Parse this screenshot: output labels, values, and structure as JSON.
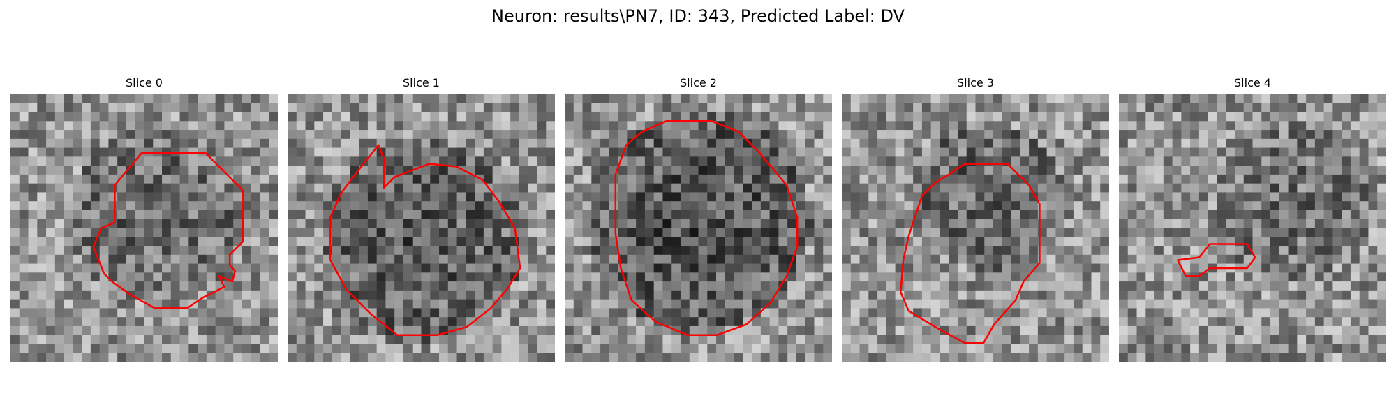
{
  "suptitle": "Neuron: results\\PN7, ID: 343, Predicted Label: DV",
  "contour_color": "#ff0000",
  "panels": [
    {
      "title": "Slice 0",
      "seed": 11,
      "dark_center": [
        0.55,
        0.45
      ],
      "dark_radius": 0.33,
      "dark_strength": 0.18,
      "contour": [
        [
          0.49,
          0.22
        ],
        [
          0.73,
          0.22
        ],
        [
          0.87,
          0.36
        ],
        [
          0.87,
          0.55
        ],
        [
          0.82,
          0.6
        ],
        [
          0.82,
          0.64
        ],
        [
          0.84,
          0.66
        ],
        [
          0.83,
          0.7
        ],
        [
          0.78,
          0.68
        ],
        [
          0.8,
          0.72
        ],
        [
          0.72,
          0.76
        ],
        [
          0.66,
          0.8
        ],
        [
          0.54,
          0.8
        ],
        [
          0.45,
          0.75
        ],
        [
          0.38,
          0.7
        ],
        [
          0.35,
          0.67
        ],
        [
          0.31,
          0.57
        ],
        [
          0.34,
          0.5
        ],
        [
          0.39,
          0.48
        ],
        [
          0.39,
          0.34
        ]
      ]
    },
    {
      "title": "Slice 1",
      "seed": 23,
      "dark_center": [
        0.5,
        0.55
      ],
      "dark_radius": 0.38,
      "dark_strength": 0.24,
      "contour": [
        [
          0.34,
          0.19
        ],
        [
          0.36,
          0.24
        ],
        [
          0.36,
          0.35
        ],
        [
          0.4,
          0.31
        ],
        [
          0.45,
          0.29
        ],
        [
          0.53,
          0.26
        ],
        [
          0.63,
          0.27
        ],
        [
          0.73,
          0.32
        ],
        [
          0.79,
          0.4
        ],
        [
          0.85,
          0.5
        ],
        [
          0.87,
          0.65
        ],
        [
          0.82,
          0.73
        ],
        [
          0.76,
          0.8
        ],
        [
          0.67,
          0.87
        ],
        [
          0.56,
          0.9
        ],
        [
          0.41,
          0.9
        ],
        [
          0.31,
          0.82
        ],
        [
          0.22,
          0.73
        ],
        [
          0.16,
          0.62
        ],
        [
          0.16,
          0.46
        ],
        [
          0.2,
          0.37
        ],
        [
          0.26,
          0.29
        ]
      ]
    },
    {
      "title": "Slice 2",
      "seed": 37,
      "dark_center": [
        0.5,
        0.47
      ],
      "dark_radius": 0.42,
      "dark_strength": 0.28,
      "contour": [
        [
          0.38,
          0.1
        ],
        [
          0.55,
          0.1
        ],
        [
          0.65,
          0.14
        ],
        [
          0.73,
          0.22
        ],
        [
          0.83,
          0.34
        ],
        [
          0.87,
          0.46
        ],
        [
          0.87,
          0.57
        ],
        [
          0.83,
          0.68
        ],
        [
          0.77,
          0.78
        ],
        [
          0.68,
          0.86
        ],
        [
          0.57,
          0.9
        ],
        [
          0.46,
          0.9
        ],
        [
          0.34,
          0.85
        ],
        [
          0.25,
          0.77
        ],
        [
          0.21,
          0.65
        ],
        [
          0.19,
          0.52
        ],
        [
          0.19,
          0.3
        ],
        [
          0.23,
          0.19
        ],
        [
          0.29,
          0.14
        ]
      ]
    },
    {
      "title": "Slice 3",
      "seed": 51,
      "dark_center": [
        0.55,
        0.38
      ],
      "dark_radius": 0.28,
      "dark_strength": 0.2,
      "contour": [
        [
          0.46,
          0.26
        ],
        [
          0.62,
          0.26
        ],
        [
          0.7,
          0.34
        ],
        [
          0.74,
          0.41
        ],
        [
          0.74,
          0.63
        ],
        [
          0.68,
          0.7
        ],
        [
          0.65,
          0.77
        ],
        [
          0.57,
          0.86
        ],
        [
          0.53,
          0.93
        ],
        [
          0.46,
          0.93
        ],
        [
          0.35,
          0.87
        ],
        [
          0.25,
          0.81
        ],
        [
          0.22,
          0.74
        ],
        [
          0.23,
          0.62
        ],
        [
          0.25,
          0.53
        ],
        [
          0.27,
          0.47
        ],
        [
          0.3,
          0.38
        ],
        [
          0.35,
          0.33
        ],
        [
          0.4,
          0.3
        ]
      ]
    },
    {
      "title": "Slice 4",
      "seed": 67,
      "dark_center": [
        0.65,
        0.4
      ],
      "dark_radius": 0.3,
      "dark_strength": 0.14,
      "contour": [
        [
          0.3,
          0.61
        ],
        [
          0.34,
          0.56
        ],
        [
          0.48,
          0.56
        ],
        [
          0.51,
          0.61
        ],
        [
          0.48,
          0.65
        ],
        [
          0.34,
          0.65
        ],
        [
          0.3,
          0.68
        ],
        [
          0.25,
          0.68
        ],
        [
          0.22,
          0.62
        ]
      ]
    }
  ]
}
